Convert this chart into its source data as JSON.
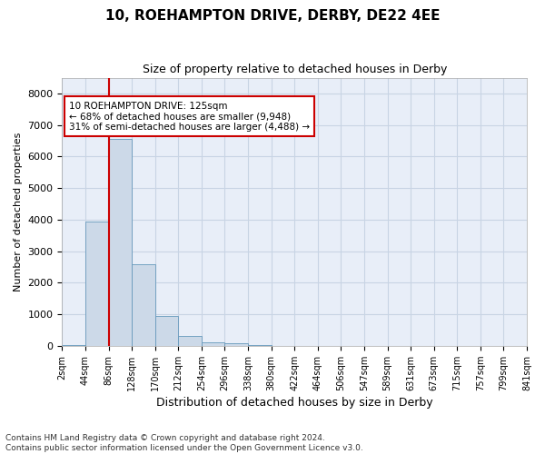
{
  "title_line1": "10, ROEHAMPTON DRIVE, DERBY, DE22 4EE",
  "title_line2": "Size of property relative to detached houses in Derby",
  "xlabel": "Distribution of detached houses by size in Derby",
  "ylabel": "Number of detached properties",
  "footnote": "Contains HM Land Registry data © Crown copyright and database right 2024.\nContains public sector information licensed under the Open Government Licence v3.0.",
  "bar_color": "#ccd9e8",
  "bar_edge_color": "#6699bb",
  "bar_values": [
    30,
    3950,
    6550,
    2600,
    950,
    310,
    100,
    70,
    10,
    0,
    0,
    0,
    0,
    0,
    0,
    0,
    0,
    0,
    0,
    0
  ],
  "x_labels": [
    "2sqm",
    "44sqm",
    "86sqm",
    "128sqm",
    "170sqm",
    "212sqm",
    "254sqm",
    "296sqm",
    "338sqm",
    "380sqm",
    "422sqm",
    "464sqm",
    "506sqm",
    "547sqm",
    "589sqm",
    "631sqm",
    "673sqm",
    "715sqm",
    "757sqm",
    "799sqm",
    "841sqm"
  ],
  "ylim": [
    0,
    8500
  ],
  "yticks": [
    0,
    1000,
    2000,
    3000,
    4000,
    5000,
    6000,
    7000,
    8000
  ],
  "annotation_line1": "10 ROEHAMPTON DRIVE: 125sqm",
  "annotation_line2": "← 68% of detached houses are smaller (9,948)",
  "annotation_line3": "31% of semi-detached houses are larger (4,488) →",
  "annotation_box_color": "#ffffff",
  "annotation_border_color": "#cc0000",
  "vline_color": "#cc0000",
  "grid_color": "#c8d4e4",
  "background_color": "#e8eef8",
  "title1_fontsize": 11,
  "title2_fontsize": 9,
  "ylabel_fontsize": 8,
  "xlabel_fontsize": 9,
  "tick_fontsize": 8,
  "xtick_fontsize": 7,
  "footnote_fontsize": 6.5
}
